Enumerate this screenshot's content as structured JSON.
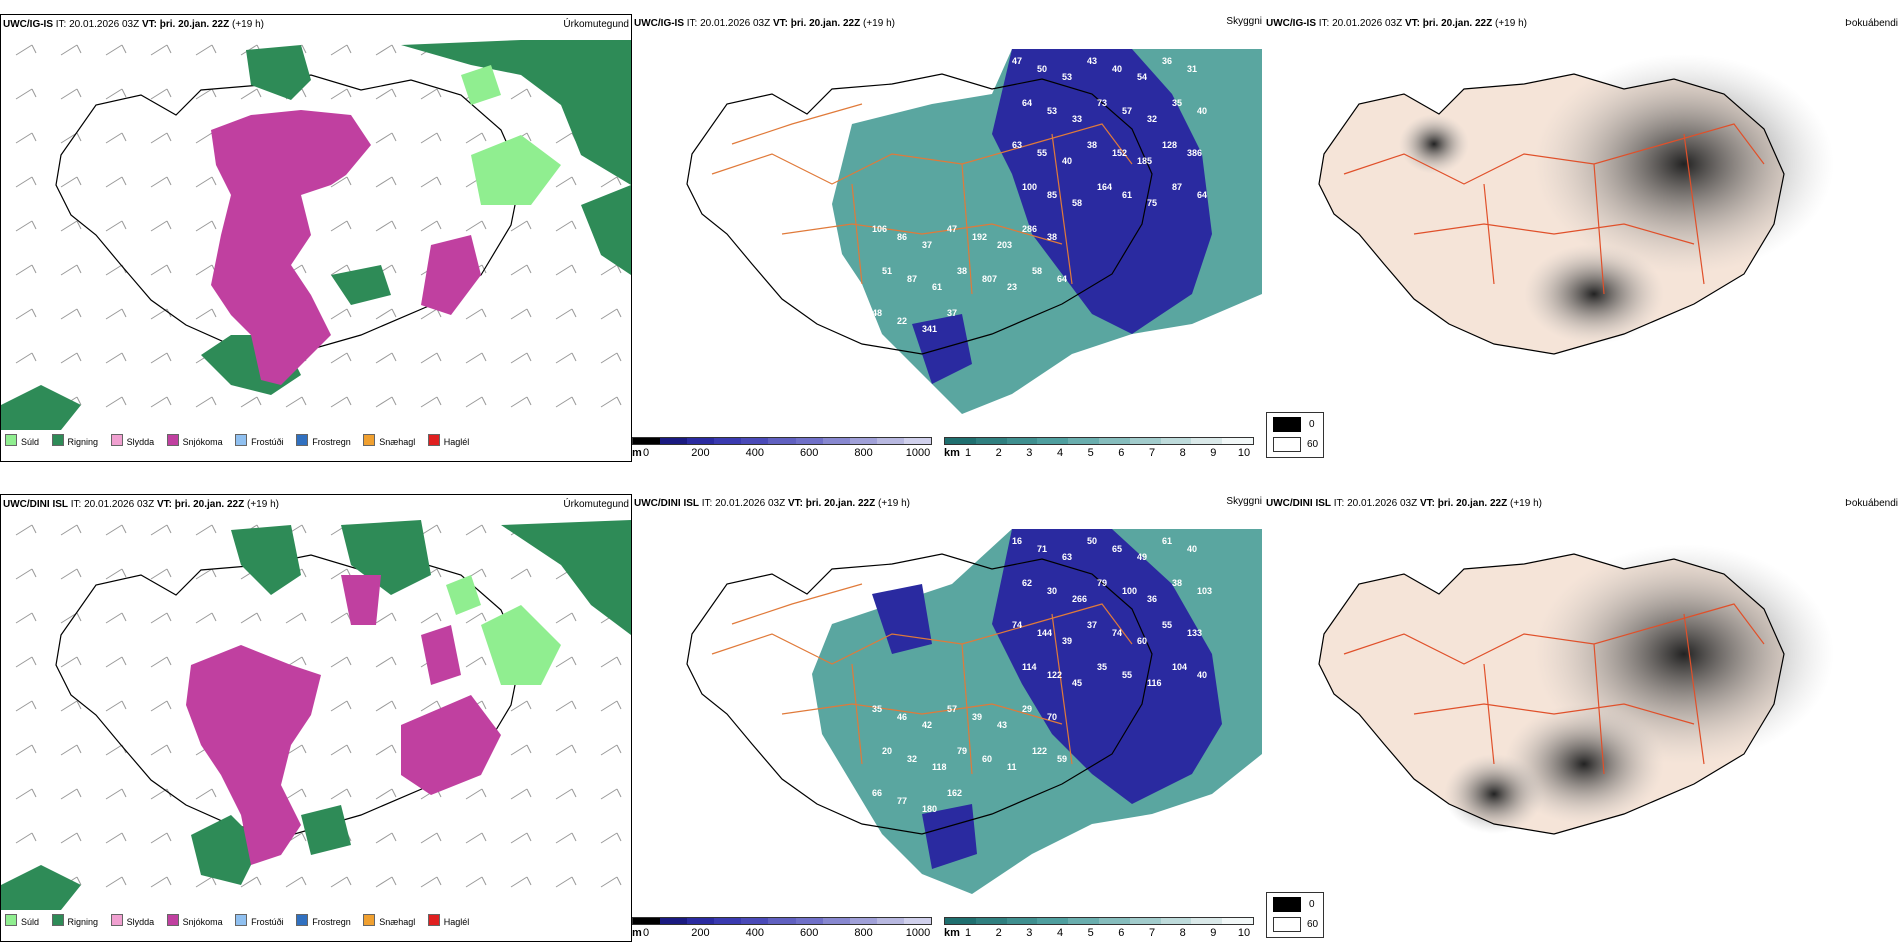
{
  "rows": [
    {
      "model": "UWC/IG-IS",
      "it_prefix": "IT:",
      "it_time": "20.01.2026 03Z",
      "vt_prefix": "VT:",
      "vt_time": "þri. 20.jan. 22Z",
      "lead": "(+19 h)",
      "visibility_labels": [
        {
          "value": "47"
        },
        {
          "value": "50"
        },
        {
          "value": "53"
        },
        {
          "value": "43"
        },
        {
          "value": "40"
        },
        {
          "value": "54"
        },
        {
          "value": "36"
        },
        {
          "value": "31"
        },
        {
          "value": "64"
        },
        {
          "value": "53"
        },
        {
          "value": "33"
        },
        {
          "value": "73"
        },
        {
          "value": "57"
        },
        {
          "value": "32"
        },
        {
          "value": "35"
        },
        {
          "value": "40"
        },
        {
          "value": "63"
        },
        {
          "value": "55"
        },
        {
          "value": "40"
        },
        {
          "value": "38"
        },
        {
          "value": "152"
        },
        {
          "value": "185"
        },
        {
          "value": "128"
        },
        {
          "value": "386"
        },
        {
          "value": "100"
        },
        {
          "value": "85"
        },
        {
          "value": "58"
        },
        {
          "value": "164"
        },
        {
          "value": "61"
        },
        {
          "value": "75"
        },
        {
          "value": "87"
        },
        {
          "value": "64"
        },
        {
          "value": "106"
        },
        {
          "value": "86"
        },
        {
          "value": "37"
        },
        {
          "value": "47"
        },
        {
          "value": "192"
        },
        {
          "value": "203"
        },
        {
          "value": "286"
        },
        {
          "value": "38"
        },
        {
          "value": "51"
        },
        {
          "value": "87"
        },
        {
          "value": "61"
        },
        {
          "value": "38"
        },
        {
          "value": "807"
        },
        {
          "value": "23"
        },
        {
          "value": "58"
        },
        {
          "value": "64"
        },
        {
          "value": "48"
        },
        {
          "value": "22"
        },
        {
          "value": "341"
        },
        {
          "value": "37"
        }
      ]
    },
    {
      "model": "UWC/DINI ISL",
      "it_prefix": "IT:",
      "it_time": "20.01.2026 03Z",
      "vt_prefix": "VT:",
      "vt_time": "þri. 20.jan. 22Z",
      "lead": "(+19 h)",
      "visibility_labels": [
        {
          "value": "16"
        },
        {
          "value": "71"
        },
        {
          "value": "63"
        },
        {
          "value": "50"
        },
        {
          "value": "65"
        },
        {
          "value": "49"
        },
        {
          "value": "61"
        },
        {
          "value": "40"
        },
        {
          "value": "62"
        },
        {
          "value": "30"
        },
        {
          "value": "266"
        },
        {
          "value": "79"
        },
        {
          "value": "100"
        },
        {
          "value": "36"
        },
        {
          "value": "38"
        },
        {
          "value": "103"
        },
        {
          "value": "74"
        },
        {
          "value": "144"
        },
        {
          "value": "39"
        },
        {
          "value": "37"
        },
        {
          "value": "74"
        },
        {
          "value": "60"
        },
        {
          "value": "55"
        },
        {
          "value": "133"
        },
        {
          "value": "114"
        },
        {
          "value": "122"
        },
        {
          "value": "45"
        },
        {
          "value": "35"
        },
        {
          "value": "55"
        },
        {
          "value": "116"
        },
        {
          "value": "104"
        },
        {
          "value": "40"
        },
        {
          "value": "35"
        },
        {
          "value": "46"
        },
        {
          "value": "42"
        },
        {
          "value": "57"
        },
        {
          "value": "39"
        },
        {
          "value": "43"
        },
        {
          "value": "29"
        },
        {
          "value": "70"
        },
        {
          "value": "20"
        },
        {
          "value": "32"
        },
        {
          "value": "118"
        },
        {
          "value": "79"
        },
        {
          "value": "60"
        },
        {
          "value": "11"
        },
        {
          "value": "122"
        },
        {
          "value": "59"
        },
        {
          "value": "66"
        },
        {
          "value": "77"
        },
        {
          "value": "180"
        },
        {
          "value": "162"
        }
      ]
    }
  ],
  "panel_titles": {
    "precip": "Úrkomutegund",
    "cloud": "Skyggni",
    "dewpoint": "Þokuábendi"
  },
  "precip_legend": [
    {
      "label": "Súld",
      "color": "#90ee90"
    },
    {
      "label": "Rigning",
      "color": "#2e8b57"
    },
    {
      "label": "Slydda",
      "color": "#f0a0d0"
    },
    {
      "label": "Snjókoma",
      "color": "#c040a0"
    },
    {
      "label": "Frostúði",
      "color": "#90c0f0"
    },
    {
      "label": "Frostregn",
      "color": "#3070c0"
    },
    {
      "label": "Snæhagl",
      "color": "#f0a030"
    },
    {
      "label": "Haglél",
      "color": "#e02020"
    }
  ],
  "ceiling_bar": {
    "unit": "m",
    "ticks": [
      "0",
      "200",
      "400",
      "600",
      "800",
      "1000"
    ],
    "colors": [
      "#000000",
      "#1a1a80",
      "#2a2aa0",
      "#3a3ab0",
      "#4a4ab8",
      "#6060c0",
      "#7070c8",
      "#8888d0",
      "#a0a0d8",
      "#b8b8e0",
      "#d0d0ec"
    ]
  },
  "visibility_bar": {
    "unit": "km",
    "ticks": [
      "1",
      "2",
      "3",
      "4",
      "5",
      "6",
      "7",
      "8",
      "9",
      "10"
    ],
    "colors": [
      "#1f6f6f",
      "#2f7f7f",
      "#3f8f8f",
      "#4f9f9f",
      "#6aaeae",
      "#86bdbd",
      "#a2cccc",
      "#bedbdb",
      "#dae9e9",
      "#f2f8f8"
    ]
  },
  "cloud_legend": {
    "black": "0",
    "white": "60"
  },
  "colors": {
    "rain": "#2e8b57",
    "drizzle": "#90ee90",
    "snow": "#c040a0",
    "cloud_teal": "#5aa6a0",
    "cloud_blue": "#2a2aa0",
    "roads": "#e07a3a",
    "coast": "#000000",
    "land_tint": "#f5e4d8",
    "fog_dark": "#2a2a2a"
  }
}
